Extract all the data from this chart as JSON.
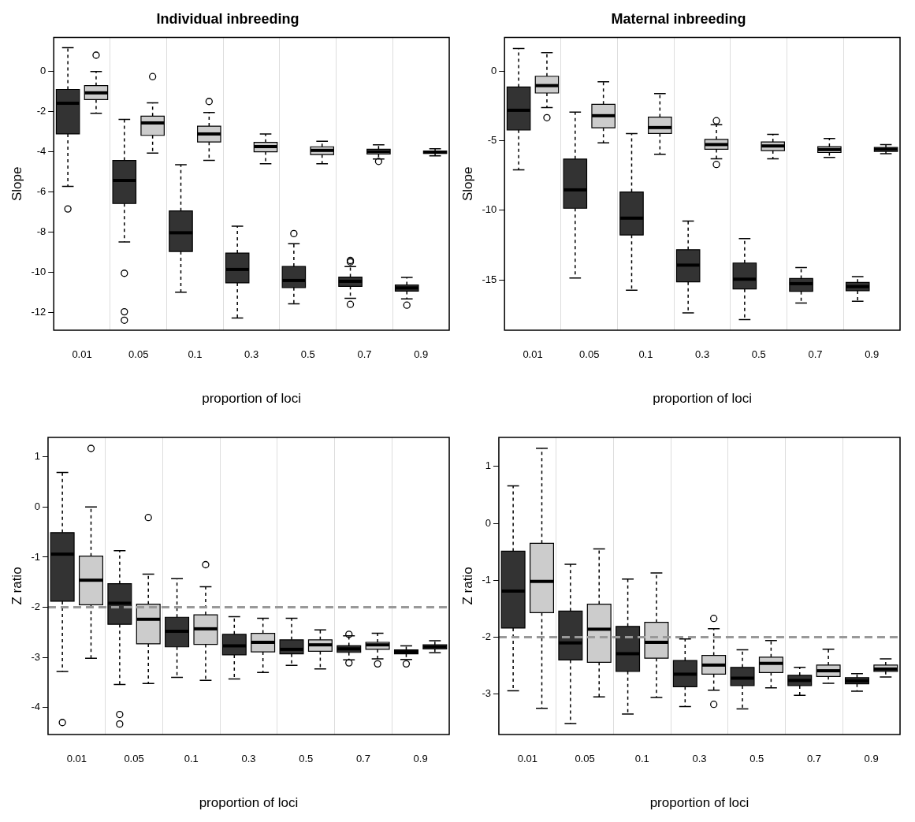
{
  "chart_data": [
    {
      "type": "box",
      "title": "Individual inbreeding",
      "xlabel": "proportion of loci",
      "ylabel": "Slope",
      "categories": [
        "0.01",
        "0.05",
        "0.1",
        "0.3",
        "0.5",
        "0.7",
        "0.9"
      ],
      "ylim": [
        -12.9,
        1.7
      ],
      "yticks": [
        -12,
        -10,
        -8,
        -6,
        -4,
        -2,
        0
      ],
      "grid": "x",
      "legend": false,
      "series": [
        {
          "color": "#333333",
          "boxes": [
            {
              "low": -5.73,
              "q1": -3.11,
              "median": -1.58,
              "q3": -0.89,
              "high": 1.19,
              "outliers": [
                -6.85
              ]
            },
            {
              "low": -8.5,
              "q1": -6.58,
              "median": -5.43,
              "q3": -4.43,
              "high": -2.38,
              "outliers": [
                -10.06,
                -11.98,
                -12.4
              ]
            },
            {
              "low": -11.0,
              "q1": -8.97,
              "median": -8.04,
              "q3": -6.95,
              "high": -4.64
            },
            {
              "low": -12.29,
              "q1": -10.54,
              "median": -9.87,
              "q3": -9.05,
              "high": -7.71
            },
            {
              "low": -11.58,
              "q1": -10.77,
              "median": -10.42,
              "q3": -9.72,
              "high": -8.59,
              "outliers": [
                -8.08
              ]
            },
            {
              "low": -11.31,
              "q1": -10.71,
              "median": -10.46,
              "q3": -10.25,
              "high": -9.73,
              "outliers": [
                -9.42,
                -9.49,
                -11.61
              ]
            },
            {
              "low": -11.34,
              "q1": -10.95,
              "median": -10.79,
              "q3": -10.64,
              "high": -10.27,
              "outliers": [
                -11.65
              ]
            }
          ]
        },
        {
          "color": "#cccccc",
          "boxes": [
            {
              "low": -2.08,
              "q1": -1.4,
              "median": -1.06,
              "q3": -0.7,
              "high": 0.0,
              "outliers": [
                0.82
              ]
            },
            {
              "low": -4.06,
              "q1": -3.18,
              "median": -2.56,
              "q3": -2.22,
              "high": -1.56,
              "outliers": [
                -0.25
              ]
            },
            {
              "low": -4.43,
              "q1": -3.51,
              "median": -3.11,
              "q3": -2.72,
              "high": -2.04,
              "outliers": [
                -1.49
              ]
            },
            {
              "low": -4.6,
              "q1": -4.0,
              "median": -3.74,
              "q3": -3.53,
              "high": -3.11
            },
            {
              "low": -4.6,
              "q1": -4.14,
              "median": -3.93,
              "q3": -3.75,
              "high": -3.48
            },
            {
              "low": -4.36,
              "q1": -4.11,
              "median": -3.99,
              "q3": -3.87,
              "high": -3.65,
              "outliers": [
                -4.48
              ]
            },
            {
              "low": -4.2,
              "q1": -4.08,
              "median": -4.02,
              "q3": -3.96,
              "high": -3.85
            }
          ]
        }
      ]
    },
    {
      "type": "box",
      "title": "Maternal inbreeding",
      "xlabel": "proportion of loci",
      "ylabel": "Slope",
      "categories": [
        "0.01",
        "0.05",
        "0.1",
        "0.3",
        "0.5",
        "0.7",
        "0.9"
      ],
      "ylim": [
        -18.6,
        2.4
      ],
      "yticks": [
        -15,
        -10,
        -5,
        0
      ],
      "grid": "x",
      "legend": false,
      "series": [
        {
          "color": "#333333",
          "boxes": [
            {
              "low": -7.09,
              "q1": -4.23,
              "median": -2.82,
              "q3": -1.15,
              "high": 1.62
            },
            {
              "low": -14.85,
              "q1": -9.85,
              "median": -8.53,
              "q3": -6.32,
              "high": -2.95
            },
            {
              "low": -15.73,
              "q1": -11.77,
              "median": -10.56,
              "q3": -8.68,
              "high": -4.49
            },
            {
              "low": -17.35,
              "q1": -15.13,
              "median": -13.93,
              "q3": -12.82,
              "high": -10.77
            },
            {
              "low": -17.84,
              "q1": -15.64,
              "median": -14.94,
              "q3": -13.78,
              "high": -12.03
            },
            {
              "low": -16.65,
              "q1": -15.81,
              "median": -15.26,
              "q3": -14.89,
              "high": -14.1
            },
            {
              "low": -16.52,
              "q1": -15.77,
              "median": -15.47,
              "q3": -15.17,
              "high": -14.76
            }
          ]
        },
        {
          "color": "#cccccc",
          "boxes": [
            {
              "low": -2.63,
              "q1": -1.58,
              "median": -1.05,
              "q3": -0.38,
              "high": 1.32,
              "outliers": [
                -3.35
              ]
            },
            {
              "low": -5.15,
              "q1": -4.08,
              "median": -3.21,
              "q3": -2.39,
              "high": -0.77
            },
            {
              "low": -5.98,
              "q1": -4.49,
              "median": -4.06,
              "q3": -3.31,
              "high": -1.62
            },
            {
              "low": -6.3,
              "q1": -5.62,
              "median": -5.28,
              "q3": -4.91,
              "high": -3.85,
              "outliers": [
                -3.57,
                -6.71
              ]
            },
            {
              "low": -6.3,
              "q1": -5.71,
              "median": -5.38,
              "q3": -5.09,
              "high": -4.55
            },
            {
              "low": -6.2,
              "q1": -5.85,
              "median": -5.64,
              "q3": -5.43,
              "high": -4.85
            },
            {
              "low": -5.94,
              "q1": -5.77,
              "median": -5.62,
              "q3": -5.49,
              "high": -5.28
            }
          ]
        }
      ]
    },
    {
      "type": "box",
      "xlabel": "proportion of loci",
      "ylabel": "Z ratio",
      "categories": [
        "0.01",
        "0.05",
        "0.1",
        "0.3",
        "0.5",
        "0.7",
        "0.9"
      ],
      "ylim": [
        -4.54,
        1.39
      ],
      "yticks": [
        -4,
        -3,
        -2,
        -1,
        0,
        1
      ],
      "grid": "x",
      "legend": false,
      "ref_lines": [
        {
          "axis": "y",
          "value": -2,
          "color": "#999999",
          "line_style": "dashed"
        }
      ],
      "series": [
        {
          "color": "#333333",
          "boxes": [
            {
              "low": -3.28,
              "q1": -1.88,
              "median": -0.94,
              "q3": -0.51,
              "high": 0.69,
              "outliers": [
                -4.3
              ]
            },
            {
              "low": -3.54,
              "q1": -2.34,
              "median": -1.92,
              "q3": -1.53,
              "high": -0.87,
              "outliers": [
                -4.14,
                -4.33
              ]
            },
            {
              "low": -3.4,
              "q1": -2.79,
              "median": -2.48,
              "q3": -2.2,
              "high": -1.43
            },
            {
              "low": -3.43,
              "q1": -2.95,
              "median": -2.77,
              "q3": -2.54,
              "high": -2.19
            },
            {
              "low": -3.16,
              "q1": -2.93,
              "median": -2.84,
              "q3": -2.65,
              "high": -2.22
            },
            {
              "low": -3.05,
              "q1": -2.9,
              "median": -2.83,
              "q3": -2.77,
              "high": -2.57,
              "outliers": [
                -2.54,
                -3.11
              ]
            },
            {
              "low": -3.04,
              "q1": -2.93,
              "median": -2.89,
              "q3": -2.85,
              "high": -2.77,
              "outliers": [
                -3.13
              ]
            }
          ]
        },
        {
          "color": "#cccccc",
          "boxes": [
            {
              "low": -3.02,
              "q1": -1.95,
              "median": -1.46,
              "q3": -0.98,
              "high": 0.0,
              "outliers": [
                1.17
              ]
            },
            {
              "low": -3.52,
              "q1": -2.73,
              "median": -2.24,
              "q3": -1.94,
              "high": -1.34,
              "outliers": [
                -0.21
              ]
            },
            {
              "low": -3.46,
              "q1": -2.74,
              "median": -2.43,
              "q3": -2.15,
              "high": -1.59,
              "outliers": [
                -1.15
              ]
            },
            {
              "low": -3.3,
              "q1": -2.89,
              "median": -2.7,
              "q3": -2.52,
              "high": -2.22
            },
            {
              "low": -3.23,
              "q1": -2.88,
              "median": -2.75,
              "q3": -2.65,
              "high": -2.45
            },
            {
              "low": -3.03,
              "q1": -2.84,
              "median": -2.75,
              "q3": -2.7,
              "high": -2.52,
              "outliers": [
                -3.13
              ]
            },
            {
              "low": -2.91,
              "q1": -2.83,
              "median": -2.79,
              "q3": -2.75,
              "high": -2.67
            }
          ]
        }
      ]
    },
    {
      "type": "box",
      "xlabel": "proportion of loci",
      "ylabel": "Z ratio",
      "categories": [
        "0.01",
        "0.05",
        "0.1",
        "0.3",
        "0.5",
        "0.7",
        "0.9"
      ],
      "ylim": [
        -3.71,
        1.51
      ],
      "yticks": [
        -3,
        -2,
        -1,
        0,
        1
      ],
      "grid": "x",
      "legend": false,
      "ref_lines": [
        {
          "axis": "y",
          "value": -2,
          "color": "#999999",
          "line_style": "dashed"
        }
      ],
      "series": [
        {
          "color": "#333333",
          "boxes": [
            {
              "low": -2.94,
              "q1": -1.84,
              "median": -1.19,
              "q3": -0.49,
              "high": 0.66
            },
            {
              "low": -3.52,
              "q1": -2.4,
              "median": -2.1,
              "q3": -1.54,
              "high": -0.72
            },
            {
              "low": -3.35,
              "q1": -2.6,
              "median": -2.29,
              "q3": -1.81,
              "high": -0.98
            },
            {
              "low": -3.22,
              "q1": -2.87,
              "median": -2.65,
              "q3": -2.41,
              "high": -2.03
            },
            {
              "low": -3.26,
              "q1": -2.85,
              "median": -2.72,
              "q3": -2.53,
              "high": -2.22
            },
            {
              "low": -3.02,
              "q1": -2.85,
              "median": -2.76,
              "q3": -2.67,
              "high": -2.53
            },
            {
              "low": -2.95,
              "q1": -2.82,
              "median": -2.77,
              "q3": -2.71,
              "high": -2.64
            }
          ]
        },
        {
          "color": "#cccccc",
          "boxes": [
            {
              "low": -3.25,
              "q1": -1.57,
              "median": -1.02,
              "q3": -0.35,
              "high": 1.32
            },
            {
              "low": -3.05,
              "q1": -2.44,
              "median": -1.86,
              "q3": -1.42,
              "high": -0.45
            },
            {
              "low": -3.06,
              "q1": -2.37,
              "median": -2.09,
              "q3": -1.74,
              "high": -0.87
            },
            {
              "low": -2.93,
              "q1": -2.65,
              "median": -2.49,
              "q3": -2.32,
              "high": -1.85,
              "outliers": [
                -1.67,
                -3.18
              ]
            },
            {
              "low": -2.89,
              "q1": -2.62,
              "median": -2.46,
              "q3": -2.35,
              "high": -2.06
            },
            {
              "low": -2.81,
              "q1": -2.69,
              "median": -2.59,
              "q3": -2.49,
              "high": -2.21
            },
            {
              "low": -2.7,
              "q1": -2.6,
              "median": -2.56,
              "q3": -2.49,
              "high": -2.38
            }
          ]
        }
      ]
    }
  ]
}
